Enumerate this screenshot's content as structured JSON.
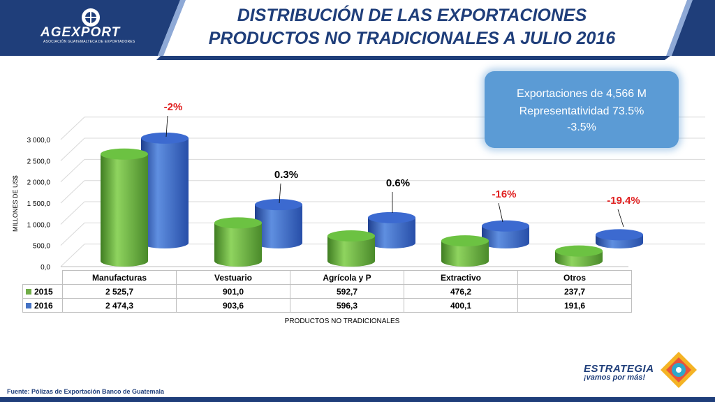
{
  "header": {
    "logo_text": "AGEXPORT",
    "logo_subtext": "ASOCIACIÓN GUATEMALTECA DE EXPORTADORES",
    "title_line1": "DISTRIBUCIÓN  DE LAS EXPORTACIONES",
    "title_line2": "PRODUCTOS NO TRADICIONALES A  JULIO 2016"
  },
  "callout": {
    "line1": "Exportaciones de   4,566 M",
    "line2": "Representatividad 73.5%",
    "line3": "-3.5%",
    "arrow_icon": "down-arrow-icon",
    "arrow_color": "#e02020"
  },
  "chart_data": {
    "type": "bar",
    "style": "3d-cylinder",
    "categories": [
      "Manufacturas",
      "Vestuario",
      "Agrícola y P",
      "Extractivo",
      "Otros"
    ],
    "series": [
      {
        "name": "2015",
        "values": [
          "2 525,7",
          "901,0",
          "592,7",
          "476,2",
          "237,7"
        ],
        "numeric": [
          2525.7,
          901.0,
          592.7,
          476.2,
          237.7
        ],
        "color": "#70ad47"
      },
      {
        "name": "2016",
        "values": [
          "2 474,3",
          "903,6",
          "596,3",
          "400,1",
          "191,6"
        ],
        "numeric": [
          2474.3,
          903.6,
          596.3,
          400.1,
          191.6
        ],
        "color": "#4472c4"
      }
    ],
    "annotations": [
      {
        "category": "Manufacturas",
        "text": "-2%",
        "color": "#e02020"
      },
      {
        "category": "Vestuario",
        "text": "0.3%",
        "color": "#000000"
      },
      {
        "category": "Agrícola y P",
        "text": "0.6%",
        "color": "#000000"
      },
      {
        "category": "Extractivo",
        "text": "-16%",
        "color": "#e02020"
      },
      {
        "category": "Otros",
        "text": "-19.4%",
        "color": "#e02020"
      }
    ],
    "ylim": [
      0,
      3000
    ],
    "yticks": [
      "0,0",
      "500,0",
      "1 000,0",
      "1 500,0",
      "2 000,0",
      "2 500,0",
      "3 000,0"
    ],
    "ylabel": "MILLONES DE US$",
    "xlabel": "PRODUCTOS NO TRADICIONALES",
    "grid": true,
    "legend": "data-table"
  },
  "footer": {
    "source": "Fuente: Pólizas de Exportación Banco de Guatemala",
    "brand_line1": "ESTRATEGIA",
    "brand_line2": "¡vamos por más!"
  },
  "colors": {
    "navy": "#1f3e7a",
    "green": "#70ad47",
    "blue": "#4472c4",
    "callout": "#5b9bd5",
    "negative": "#e02020"
  }
}
